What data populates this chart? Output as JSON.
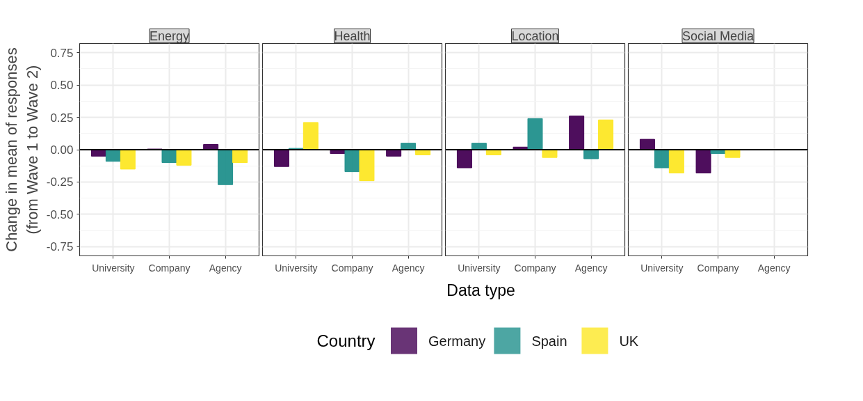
{
  "chart_data": [
    {
      "type": "bar",
      "title": "Energy",
      "ylabel": "Change in mean of responses\n(from Wave 1 to Wave 2)",
      "categories": [
        "University",
        "Company",
        "Agency"
      ],
      "ylim": [
        -0.82,
        0.82
      ],
      "yticks": [
        {
          "value": -0.75,
          "label": "-0.75"
        },
        {
          "value": -0.5,
          "label": "-0.50"
        },
        {
          "value": -0.25,
          "label": "-0.25"
        },
        {
          "value": 0,
          "label": "0.00"
        },
        {
          "value": 0.25,
          "label": "0.25"
        },
        {
          "value": 0.5,
          "label": "0.50"
        },
        {
          "value": 0.75,
          "label": "0.75"
        }
      ],
      "grid": true,
      "ref_lines": [
        {
          "axis": "y",
          "value": 0,
          "color": "#000000"
        }
      ],
      "series": [
        {
          "color": "#440154",
          "values": [
            -0.05,
            0.005,
            0.04
          ]
        },
        {
          "color": "#21908c",
          "values": [
            -0.09,
            -0.1,
            -0.27
          ]
        },
        {
          "color": "#fde725",
          "values": [
            -0.15,
            -0.12,
            -0.1
          ]
        }
      ]
    },
    {
      "type": "bar",
      "title": "Health",
      "xlabel": "Data type",
      "legend_title": "Country",
      "legend": "bottom",
      "tick_labels": "x",
      "categories": [
        "University",
        "Company",
        "Agency"
      ],
      "ylim": [
        -0.82,
        0.82
      ],
      "yticks": [
        -0.75,
        -0.5,
        -0.25,
        0,
        0.25,
        0.5,
        0.75
      ],
      "grid": true,
      "ref_lines": [
        {
          "axis": "y",
          "value": 0,
          "color": "#000000"
        }
      ],
      "series": [
        {
          "name": "Germany",
          "color": "#440154",
          "values": [
            -0.13,
            -0.03,
            -0.05
          ]
        },
        {
          "name": "Spain",
          "color": "#21908c",
          "values": [
            0.01,
            -0.17,
            0.05
          ]
        },
        {
          "name": "UK",
          "color": "#fde725",
          "values": [
            0.21,
            -0.24,
            -0.04
          ]
        }
      ]
    },
    {
      "type": "bar",
      "title": "Location",
      "tick_labels": "x",
      "categories": [
        "University",
        "Company",
        "Agency"
      ],
      "ylim": [
        -0.82,
        0.82
      ],
      "yticks": [
        -0.75,
        -0.5,
        -0.25,
        0,
        0.25,
        0.5,
        0.75
      ],
      "grid": true,
      "ref_lines": [
        {
          "axis": "y",
          "value": 0,
          "color": "#000000"
        }
      ],
      "series": [
        {
          "color": "#440154",
          "values": [
            -0.14,
            0.02,
            0.26
          ]
        },
        {
          "color": "#21908c",
          "values": [
            0.05,
            0.24,
            -0.07
          ]
        },
        {
          "color": "#fde725",
          "values": [
            -0.04,
            -0.06,
            0.23
          ]
        }
      ]
    },
    {
      "type": "bar",
      "title": "Social Media",
      "tick_labels": "x",
      "categories": [
        "University",
        "Company",
        "Agency"
      ],
      "ylim": [
        -0.82,
        0.82
      ],
      "yticks": [
        -0.75,
        -0.5,
        -0.25,
        0,
        0.25,
        0.5,
        0.75
      ],
      "grid": true,
      "ref_lines": [
        {
          "axis": "y",
          "value": 0,
          "color": "#000000"
        }
      ],
      "series": [
        {
          "color": "#440154",
          "values": [
            0.08,
            -0.18,
            null
          ]
        },
        {
          "color": "#21908c",
          "values": [
            -0.14,
            -0.03,
            null
          ]
        },
        {
          "color": "#fde725",
          "values": [
            -0.18,
            -0.06,
            null
          ]
        }
      ]
    }
  ]
}
